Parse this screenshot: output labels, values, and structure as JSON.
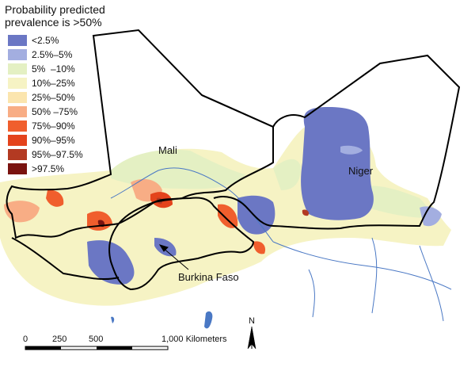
{
  "legend": {
    "title_line1": "Probability predicted",
    "title_line2": "prevalence is >50%",
    "items": [
      {
        "label": "<2.5%",
        "color": "#6b77c4"
      },
      {
        "label": "2.5%–5%",
        "color": "#a3aee0"
      },
      {
        "label": "5%  –10%",
        "color": "#e4f0c3"
      },
      {
        "label": "10%–25%",
        "color": "#f6f3c4"
      },
      {
        "label": "25%–50%",
        "color": "#fbe5ae"
      },
      {
        "label": "50% –75%",
        "color": "#f8ad85"
      },
      {
        "label": "75%–90%",
        "color": "#f05e2d"
      },
      {
        "label": "90%–95%",
        "color": "#e4431c"
      },
      {
        "label": "95%–97.5%",
        "color": "#b33a22"
      },
      {
        "label": ">97.5%",
        "color": "#7a1310"
      }
    ]
  },
  "labels": {
    "mali": "Mali",
    "niger": "Niger",
    "burkina": "Burkina Faso"
  },
  "scale_bar": {
    "ticks": [
      "0",
      "250",
      "500",
      "1,000 Kilometers"
    ]
  },
  "north_arrow": {
    "label": "N"
  }
}
